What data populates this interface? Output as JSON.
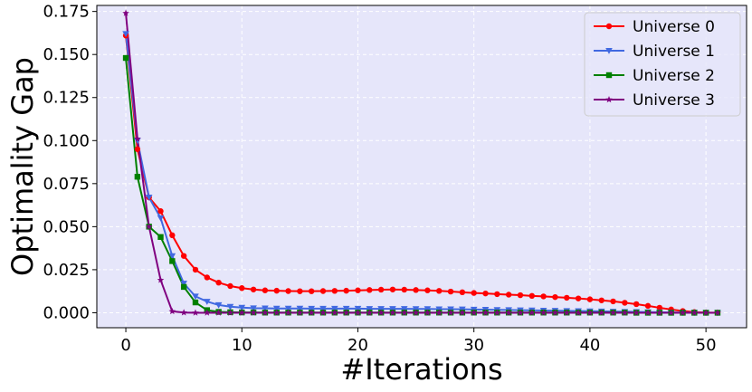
{
  "chart_data": {
    "type": "line",
    "title": "",
    "xlabel": "#Iterations",
    "ylabel": "Optimality Gap",
    "xlim": [
      -2.5,
      53.5
    ],
    "ylim": [
      -0.0087,
      0.1785
    ],
    "xticks": [
      0,
      10,
      20,
      30,
      40,
      50
    ],
    "xtick_labels": [
      "0",
      "10",
      "20",
      "30",
      "40",
      "50"
    ],
    "yticks": [
      0.0,
      0.025,
      0.05,
      0.075,
      0.1,
      0.125,
      0.15,
      0.175
    ],
    "ytick_labels": [
      "0.000",
      "0.025",
      "0.050",
      "0.075",
      "0.100",
      "0.125",
      "0.150",
      "0.175"
    ],
    "grid": true,
    "legend_position": "top-right",
    "background": "#e6e6fa",
    "series": [
      {
        "name": "Universe 0",
        "color": "#ff0000",
        "marker": "circle",
        "x": [
          0,
          1,
          2,
          3,
          4,
          5,
          6,
          7,
          8,
          9,
          10,
          11,
          12,
          13,
          14,
          15,
          16,
          17,
          18,
          19,
          20,
          21,
          22,
          23,
          24,
          25,
          26,
          27,
          28,
          29,
          30,
          31,
          32,
          33,
          34,
          35,
          36,
          37,
          38,
          39,
          40,
          41,
          42,
          43,
          44,
          45,
          46,
          47,
          48,
          49,
          50,
          51
        ],
        "y": [
          0.161,
          0.095,
          0.067,
          0.059,
          0.045,
          0.033,
          0.025,
          0.0205,
          0.0175,
          0.0155,
          0.0143,
          0.0135,
          0.013,
          0.0128,
          0.0126,
          0.0125,
          0.0125,
          0.0126,
          0.0127,
          0.0128,
          0.013,
          0.0132,
          0.0134,
          0.0135,
          0.0134,
          0.0132,
          0.013,
          0.0127,
          0.0123,
          0.0119,
          0.0115,
          0.0112,
          0.0108,
          0.0105,
          0.0102,
          0.0098,
          0.0095,
          0.0091,
          0.0087,
          0.0083,
          0.0078,
          0.0072,
          0.0066,
          0.0058,
          0.005,
          0.004,
          0.0029,
          0.0019,
          0.001,
          0.0004,
          0.0001,
          0.0
        ]
      },
      {
        "name": "Universe 1",
        "color": "#4169e1",
        "marker": "triangle-down",
        "x": [
          0,
          1,
          2,
          3,
          4,
          5,
          6,
          7,
          8,
          9,
          10,
          11,
          12,
          13,
          14,
          15,
          16,
          17,
          18,
          19,
          20,
          21,
          22,
          23,
          24,
          25,
          26,
          27,
          28,
          29,
          30,
          31,
          32,
          33,
          34,
          35,
          36,
          37,
          38,
          39,
          40,
          41,
          42,
          43,
          44,
          45,
          46,
          47,
          48,
          49,
          50,
          51
        ],
        "y": [
          0.162,
          0.1,
          0.067,
          0.055,
          0.033,
          0.017,
          0.0095,
          0.0065,
          0.0045,
          0.0035,
          0.003,
          0.0027,
          0.0026,
          0.0025,
          0.0025,
          0.0025,
          0.0024,
          0.0024,
          0.0024,
          0.0024,
          0.0024,
          0.0023,
          0.0023,
          0.0023,
          0.0023,
          0.0022,
          0.0022,
          0.0021,
          0.0021,
          0.002,
          0.0019,
          0.0018,
          0.0017,
          0.0016,
          0.0015,
          0.0014,
          0.0013,
          0.0012,
          0.0011,
          0.001,
          0.0009,
          0.0008,
          0.0007,
          0.0006,
          0.0005,
          0.0004,
          0.0003,
          0.0002,
          0.0001,
          0.0001,
          0.0,
          0.0
        ]
      },
      {
        "name": "Universe 2",
        "color": "#008000",
        "marker": "square",
        "x": [
          0,
          1,
          2,
          3,
          4,
          5,
          6,
          7,
          8,
          9,
          10,
          11,
          12,
          13,
          14,
          15,
          16,
          17,
          18,
          19,
          20,
          21,
          22,
          23,
          24,
          25,
          26,
          27,
          28,
          29,
          30,
          31,
          32,
          33,
          34,
          35,
          36,
          37,
          38,
          39,
          40,
          41,
          42,
          43,
          44,
          45,
          46,
          47,
          48,
          49,
          50,
          51
        ],
        "y": [
          0.148,
          0.079,
          0.05,
          0.044,
          0.03,
          0.015,
          0.006,
          0.0015,
          0.0005,
          0.0003,
          0.0002,
          0.0002,
          0.0001,
          0.0001,
          0.0001,
          0.0001,
          0.0001,
          0.0001,
          0.0001,
          0.0001,
          0.0001,
          0.0001,
          0.0001,
          0.0001,
          0.0001,
          0.0001,
          0.0001,
          0.0001,
          0.0001,
          0.0001,
          0.0001,
          0.0001,
          0.0001,
          0.0001,
          0.0001,
          0.0001,
          0.0001,
          0.0001,
          0.0001,
          0.0001,
          0.0001,
          0.0001,
          0.0001,
          0.0001,
          0.0,
          0.0,
          0.0,
          0.0,
          0.0,
          0.0,
          0.0,
          0.0
        ]
      },
      {
        "name": "Universe 3",
        "color": "#800080",
        "marker": "star",
        "x": [
          0,
          1,
          2,
          3,
          4,
          5,
          6,
          7,
          8,
          9,
          10,
          11,
          12,
          13,
          14,
          15,
          16,
          17,
          18,
          19,
          20,
          21,
          22,
          23,
          24,
          25,
          26,
          27,
          28,
          29,
          30,
          31,
          32,
          33,
          34,
          35,
          36,
          37,
          38,
          39,
          40,
          41,
          42,
          43,
          44,
          45,
          46,
          47,
          48,
          49,
          50,
          51
        ],
        "y": [
          0.174,
          0.101,
          0.05,
          0.019,
          0.0008,
          0.0001,
          0.0,
          0.0,
          0.0,
          0.0,
          0.0,
          0.0,
          0.0,
          0.0,
          0.0,
          0.0,
          0.0,
          0.0,
          0.0,
          0.0,
          0.0,
          0.0,
          0.0,
          0.0,
          0.0,
          0.0,
          0.0,
          0.0,
          0.0,
          0.0,
          0.0,
          0.0,
          0.0,
          0.0,
          0.0,
          0.0,
          0.0,
          0.0,
          0.0,
          0.0,
          0.0,
          0.0,
          0.0,
          0.0,
          0.0,
          0.0,
          0.0,
          0.0,
          0.0,
          0.0,
          0.0,
          0.0
        ]
      }
    ]
  }
}
